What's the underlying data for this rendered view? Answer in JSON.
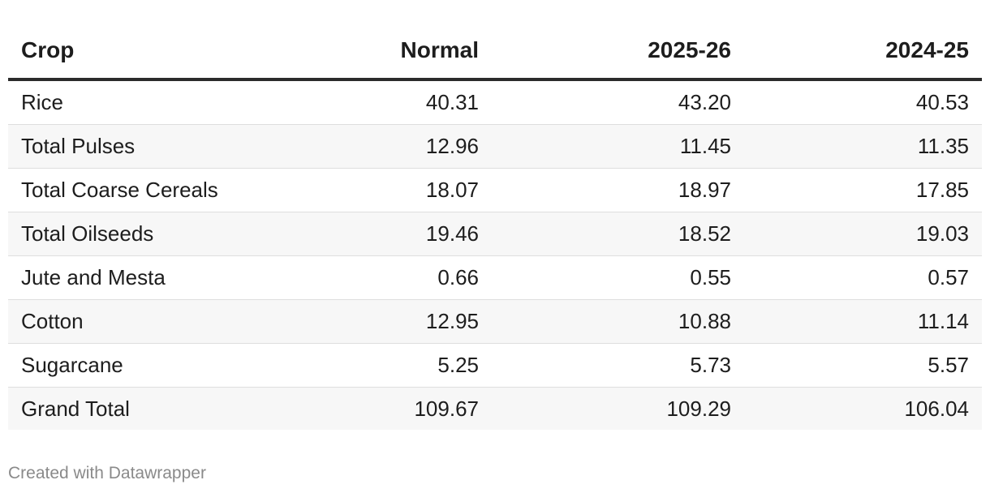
{
  "chart_data": {
    "type": "table",
    "columns": [
      "Crop",
      "Normal",
      "2025-26",
      "2024-25"
    ],
    "rows": [
      [
        "Rice",
        "40.31",
        "43.20",
        "40.53"
      ],
      [
        "Total Pulses",
        "12.96",
        "11.45",
        "11.35"
      ],
      [
        "Total Coarse Cereals",
        "18.07",
        "18.97",
        "17.85"
      ],
      [
        "Total Oilseeds",
        "19.46",
        "18.52",
        "19.03"
      ],
      [
        "Jute and Mesta",
        "0.66",
        "0.55",
        "0.57"
      ],
      [
        "Cotton",
        "12.95",
        "10.88",
        "11.14"
      ],
      [
        "Sugarcane",
        "5.25",
        "5.73",
        "5.57"
      ],
      [
        "Grand Total",
        "109.67",
        "109.29",
        "106.04"
      ]
    ]
  },
  "footer": {
    "credit": "Created with Datawrapper"
  }
}
